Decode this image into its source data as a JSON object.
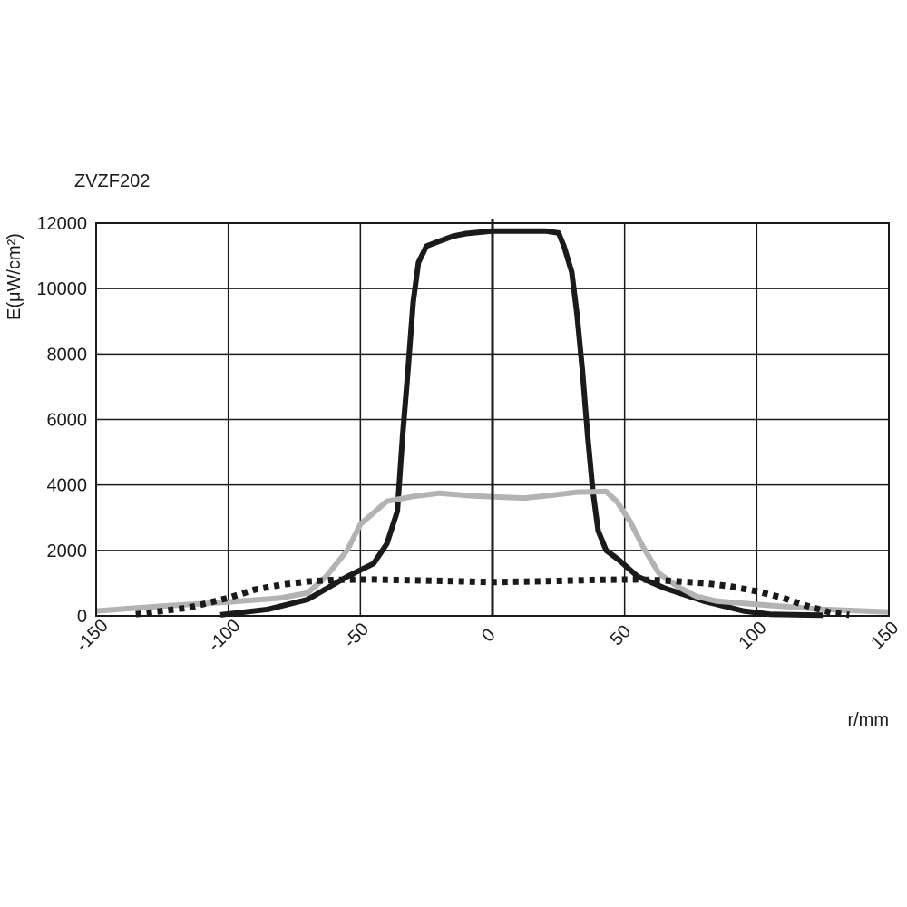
{
  "chart_data": {
    "type": "line",
    "title": "ZVZF202",
    "xlabel": "r/mm",
    "ylabel": "E(μW/cm²)",
    "xlim": [
      -150,
      150
    ],
    "ylim": [
      0,
      12000
    ],
    "x_ticks": [
      -150,
      -100,
      -50,
      0,
      50,
      100,
      150
    ],
    "y_ticks": [
      0,
      2000,
      4000,
      6000,
      8000,
      10000,
      12000
    ],
    "x_gridlines": [
      -150,
      -100,
      -50,
      0,
      50,
      100,
      150
    ],
    "grid": true,
    "series": [
      {
        "color": "#1a1a1a",
        "style": "solid",
        "points": [
          [
            -103,
            30
          ],
          [
            -85,
            200
          ],
          [
            -70,
            500
          ],
          [
            -55,
            1200
          ],
          [
            -45,
            1600
          ],
          [
            -40,
            2200
          ],
          [
            -36,
            3200
          ],
          [
            -34,
            5500
          ],
          [
            -32,
            7500
          ],
          [
            -30,
            9600
          ],
          [
            -28,
            10800
          ],
          [
            -25,
            11300
          ],
          [
            -20,
            11450
          ],
          [
            -15,
            11600
          ],
          [
            -10,
            11680
          ],
          [
            0,
            11760
          ],
          [
            10,
            11760
          ],
          [
            20,
            11760
          ],
          [
            25,
            11700
          ],
          [
            27,
            11300
          ],
          [
            30,
            10500
          ],
          [
            32,
            9200
          ],
          [
            34,
            7500
          ],
          [
            36,
            5500
          ],
          [
            38,
            3800
          ],
          [
            40,
            2600
          ],
          [
            43,
            2000
          ],
          [
            48,
            1700
          ],
          [
            55,
            1200
          ],
          [
            65,
            850
          ],
          [
            80,
            450
          ],
          [
            95,
            150
          ],
          [
            105,
            50
          ],
          [
            125,
            20
          ]
        ]
      },
      {
        "color": "#b3b3b3",
        "style": "solid",
        "points": [
          [
            -150,
            150
          ],
          [
            -125,
            300
          ],
          [
            -100,
            420
          ],
          [
            -80,
            550
          ],
          [
            -70,
            700
          ],
          [
            -63,
            1200
          ],
          [
            -55,
            2000
          ],
          [
            -50,
            2800
          ],
          [
            -40,
            3500
          ],
          [
            -30,
            3650
          ],
          [
            -20,
            3750
          ],
          [
            -10,
            3680
          ],
          [
            0,
            3640
          ],
          [
            12,
            3600
          ],
          [
            22,
            3680
          ],
          [
            32,
            3780
          ],
          [
            43,
            3800
          ],
          [
            47,
            3500
          ],
          [
            52,
            2900
          ],
          [
            57,
            2100
          ],
          [
            63,
            1300
          ],
          [
            70,
            900
          ],
          [
            77,
            600
          ],
          [
            85,
            450
          ],
          [
            100,
            350
          ],
          [
            125,
            200
          ],
          [
            150,
            120
          ]
        ]
      },
      {
        "color": "#1a1a1a",
        "style": "dotted",
        "points": [
          [
            -135,
            50
          ],
          [
            -115,
            250
          ],
          [
            -100,
            550
          ],
          [
            -90,
            800
          ],
          [
            -80,
            950
          ],
          [
            -70,
            1050
          ],
          [
            -60,
            1100
          ],
          [
            -45,
            1110
          ],
          [
            -20,
            1070
          ],
          [
            0,
            1030
          ],
          [
            20,
            1060
          ],
          [
            40,
            1100
          ],
          [
            55,
            1110
          ],
          [
            65,
            1080
          ],
          [
            80,
            1000
          ],
          [
            90,
            900
          ],
          [
            100,
            750
          ],
          [
            110,
            550
          ],
          [
            118,
            330
          ],
          [
            128,
            100
          ],
          [
            135,
            30
          ]
        ]
      }
    ]
  }
}
